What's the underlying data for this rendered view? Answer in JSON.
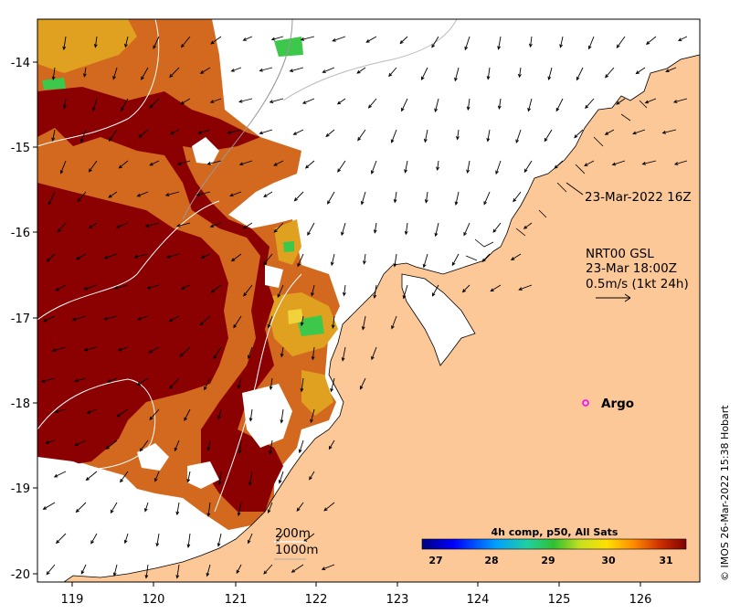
{
  "map": {
    "x_ticks": [
      "119",
      "120",
      "121",
      "122",
      "123",
      "124",
      "125",
      "126"
    ],
    "y_ticks": [
      "-14",
      "-15",
      "-16",
      "-17",
      "-18",
      "-19",
      "-20"
    ],
    "xlim": [
      118.6,
      126.8
    ],
    "ylim": [
      -20.1,
      -13.4
    ],
    "land_color": "#fdc897",
    "sst_colors": [
      "#8b0000",
      "#b71c0c",
      "#d2691e",
      "#e0a020",
      "#f2d23a",
      "#3cc84b"
    ]
  },
  "annotations": {
    "swath_time": "23-Mar-2022 16Z",
    "current_title": "NRT00 GSL",
    "current_time": "23-Mar 18:00Z",
    "current_scale": "0.5m/s (1kt 24h)",
    "argo_label": "Argo",
    "contour_200": "200m",
    "contour_1000": "1000m"
  },
  "colorbar": {
    "title": "4h comp, p50, All Sats",
    "ticks": [
      "27",
      "28",
      "29",
      "30",
      "31"
    ],
    "range": [
      26.6,
      31.5
    ]
  },
  "credit": "© IMOS 26-Mar-2022 15:38 Hobart"
}
